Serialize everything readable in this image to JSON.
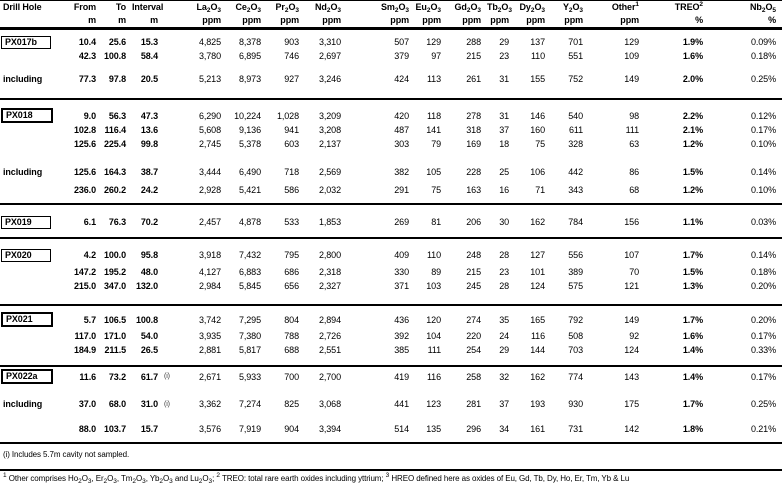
{
  "table": {
    "columns": [
      {
        "key": "drill",
        "label": "Drill Hole",
        "unit": ""
      },
      {
        "key": "from",
        "label": "From",
        "unit": "m"
      },
      {
        "key": "to",
        "label": "To",
        "unit": "m"
      },
      {
        "key": "interval",
        "label": "Interval",
        "unit": "m"
      },
      {
        "key": "note",
        "label": "",
        "unit": ""
      },
      {
        "key": "la2o3",
        "label": "La_2O_3",
        "unit": "ppm"
      },
      {
        "key": "ce2o3",
        "label": "Ce_2O_3",
        "unit": "ppm"
      },
      {
        "key": "pr2o3",
        "label": "Pr_2O_3",
        "unit": "ppm"
      },
      {
        "key": "nd2o3",
        "label": "Nd_2O_3",
        "unit": "ppm"
      },
      {
        "key": "sm2o3",
        "label": "Sm_2O_3",
        "unit": "ppm"
      },
      {
        "key": "eu2o3",
        "label": "Eu_2O_3",
        "unit": "ppm"
      },
      {
        "key": "gd2o3",
        "label": "Gd_2O_3",
        "unit": "ppm"
      },
      {
        "key": "tb2o3",
        "label": "Tb_2O_3",
        "unit": "ppm"
      },
      {
        "key": "dy2o3",
        "label": "Dy_2O_3",
        "unit": "ppm"
      },
      {
        "key": "y2o3",
        "label": "Y_2O_3",
        "unit": "ppm"
      },
      {
        "key": "other",
        "label": "Other^1",
        "unit": "ppm"
      },
      {
        "key": "treo",
        "label": "TREO^2",
        "unit": "%"
      },
      {
        "key": "nb2o5",
        "label": "Nb_2O_5",
        "unit": "%"
      }
    ],
    "groups": [
      {
        "padBottom": 12,
        "rows": [
          {
            "label": "PX017b",
            "boxed": true,
            "boxBold": false,
            "gap": 5,
            "note": "",
            "vals": [
              "10.4",
              "25.6",
              "15.3",
              "4,825",
              "8,378",
              "903",
              "3,310",
              "507",
              "129",
              "288",
              "29",
              "137",
              "701",
              "129",
              "1.9%",
              "0.09%"
            ]
          },
          {
            "label": "",
            "gap": 0,
            "note": "",
            "vals": [
              "42.3",
              "100.8",
              "58.4",
              "3,780",
              "6,895",
              "746",
              "2,697",
              "379",
              "97",
              "215",
              "23",
              "110",
              "551",
              "109",
              "1.6%",
              "0.18%"
            ]
          },
          {
            "label": "including",
            "gap": 9,
            "note": "",
            "vals": [
              "77.3",
              "97.8",
              "20.5",
              "5,213",
              "8,973",
              "927",
              "3,246",
              "424",
              "113",
              "261",
              "31",
              "155",
              "752",
              "149",
              "2.0%",
              "0.25%"
            ]
          }
        ]
      },
      {
        "padBottom": 6,
        "rows": [
          {
            "label": "PX018",
            "boxed": true,
            "boxBold": true,
            "gap": 8,
            "note": "",
            "vals": [
              "9.0",
              "56.3",
              "47.3",
              "6,290",
              "10,224",
              "1,028",
              "3,209",
              "420",
              "118",
              "278",
              "31",
              "146",
              "540",
              "98",
              "2.2%",
              "0.12%"
            ]
          },
          {
            "label": "",
            "gap": 0,
            "note": "",
            "vals": [
              "102.8",
              "116.4",
              "13.6",
              "5,608",
              "9,136",
              "941",
              "3,208",
              "487",
              "141",
              "318",
              "37",
              "160",
              "611",
              "111",
              "2.1%",
              "0.17%"
            ]
          },
          {
            "label": "",
            "gap": 0,
            "note": "",
            "vals": [
              "125.6",
              "225.4",
              "99.8",
              "2,745",
              "5,378",
              "603",
              "2,137",
              "303",
              "79",
              "169",
              "18",
              "75",
              "328",
              "63",
              "1.2%",
              "0.10%"
            ]
          },
          {
            "label": "including",
            "gap": 14,
            "note": "",
            "vals": [
              "125.6",
              "164.3",
              "38.7",
              "3,444",
              "6,490",
              "718",
              "2,569",
              "382",
              "105",
              "228",
              "25",
              "106",
              "442",
              "86",
              "1.5%",
              "0.14%"
            ]
          },
          {
            "label": "",
            "gap": 4,
            "note": "",
            "vals": [
              "236.0",
              "260.2",
              "24.2",
              "2,928",
              "5,421",
              "586",
              "2,032",
              "291",
              "75",
              "163",
              "16",
              "71",
              "343",
              "68",
              "1.2%",
              "0.10%"
            ]
          }
        ]
      },
      {
        "padBottom": 8,
        "rows": [
          {
            "label": "PX019",
            "boxed": true,
            "boxBold": false,
            "gap": 10,
            "note": "",
            "vals": [
              "6.1",
              "76.3",
              "70.2",
              "2,457",
              "4,878",
              "533",
              "1,853",
              "269",
              "81",
              "206",
              "30",
              "162",
              "784",
              "156",
              "1.1%",
              "0.03%"
            ]
          }
        ]
      },
      {
        "padBottom": 11,
        "rows": [
          {
            "label": "PX020",
            "boxed": true,
            "boxBold": false,
            "gap": 9,
            "note": "",
            "vals": [
              "4.2",
              "100.0",
              "95.8",
              "3,918",
              "7,432",
              "795",
              "2,800",
              "409",
              "110",
              "248",
              "28",
              "127",
              "556",
              "107",
              "1.7%",
              "0.14%"
            ]
          },
          {
            "label": "",
            "gap": 3,
            "note": "",
            "vals": [
              "147.2",
              "195.2",
              "48.0",
              "4,127",
              "6,883",
              "686",
              "2,318",
              "330",
              "89",
              "215",
              "23",
              "101",
              "389",
              "70",
              "1.5%",
              "0.18%"
            ]
          },
          {
            "label": "",
            "gap": 0,
            "note": "",
            "vals": [
              "215.0",
              "347.0",
              "132.0",
              "2,984",
              "5,845",
              "656",
              "2,327",
              "371",
              "103",
              "245",
              "28",
              "124",
              "575",
              "121",
              "1.3%",
              "0.20%"
            ]
          }
        ]
      },
      {
        "padBottom": 8,
        "rows": [
          {
            "label": "PX021",
            "boxed": true,
            "boxBold": true,
            "gap": 6,
            "note": "",
            "vals": [
              "5.7",
              "106.5",
              "100.8",
              "3,742",
              "7,295",
              "804",
              "2,894",
              "436",
              "120",
              "274",
              "35",
              "165",
              "792",
              "149",
              "1.7%",
              "0.20%"
            ]
          },
          {
            "label": "",
            "gap": 2,
            "note": "",
            "vals": [
              "117.0",
              "171.0",
              "54.0",
              "3,935",
              "7,380",
              "788",
              "2,726",
              "392",
              "104",
              "220",
              "24",
              "116",
              "508",
              "92",
              "1.6%",
              "0.17%"
            ]
          },
          {
            "label": "",
            "gap": 0,
            "note": "",
            "vals": [
              "184.9",
              "211.5",
              "26.5",
              "2,881",
              "5,817",
              "688",
              "2,551",
              "385",
              "111",
              "254",
              "29",
              "144",
              "703",
              "124",
              "1.4%",
              "0.33%"
            ]
          }
        ]
      },
      {
        "padBottom": 6,
        "rows": [
          {
            "label": "PX022a",
            "boxed": true,
            "boxBold": true,
            "gap": 2,
            "note": "(i)",
            "vals": [
              "11.6",
              "73.2",
              "61.7",
              "2,671",
              "5,933",
              "700",
              "2,700",
              "419",
              "116",
              "258",
              "32",
              "162",
              "774",
              "143",
              "1.4%",
              "0.17%"
            ]
          },
          {
            "label": "including",
            "gap": 13,
            "note": "(i)",
            "vals": [
              "37.0",
              "68.0",
              "31.0",
              "3,362",
              "7,274",
              "825",
              "3,068",
              "441",
              "123",
              "281",
              "37",
              "193",
              "930",
              "175",
              "1.7%",
              "0.25%"
            ]
          },
          {
            "label": "",
            "gap": 11,
            "note": "",
            "vals": [
              "88.0",
              "103.7",
              "15.7",
              "3,576",
              "7,919",
              "904",
              "3,394",
              "514",
              "135",
              "296",
              "34",
              "161",
              "731",
              "142",
              "1.8%",
              "0.21%"
            ]
          }
        ]
      }
    ]
  },
  "footnotes": {
    "cavity_note": "(i) Includes 5.7m cavity not sampled.",
    "definitions": "^1 Other comprises Ho_2O_3, Er_2O_3, Tm_2O_3, Yb_2O_3 and Lu_2O_3; ^2 TREO: total rare earth oxides including yttrium; ^3 HREO defined here as oxides of Eu, Gd, Tb, Dy, Ho, Er, Tm, Yb & Lu"
  }
}
